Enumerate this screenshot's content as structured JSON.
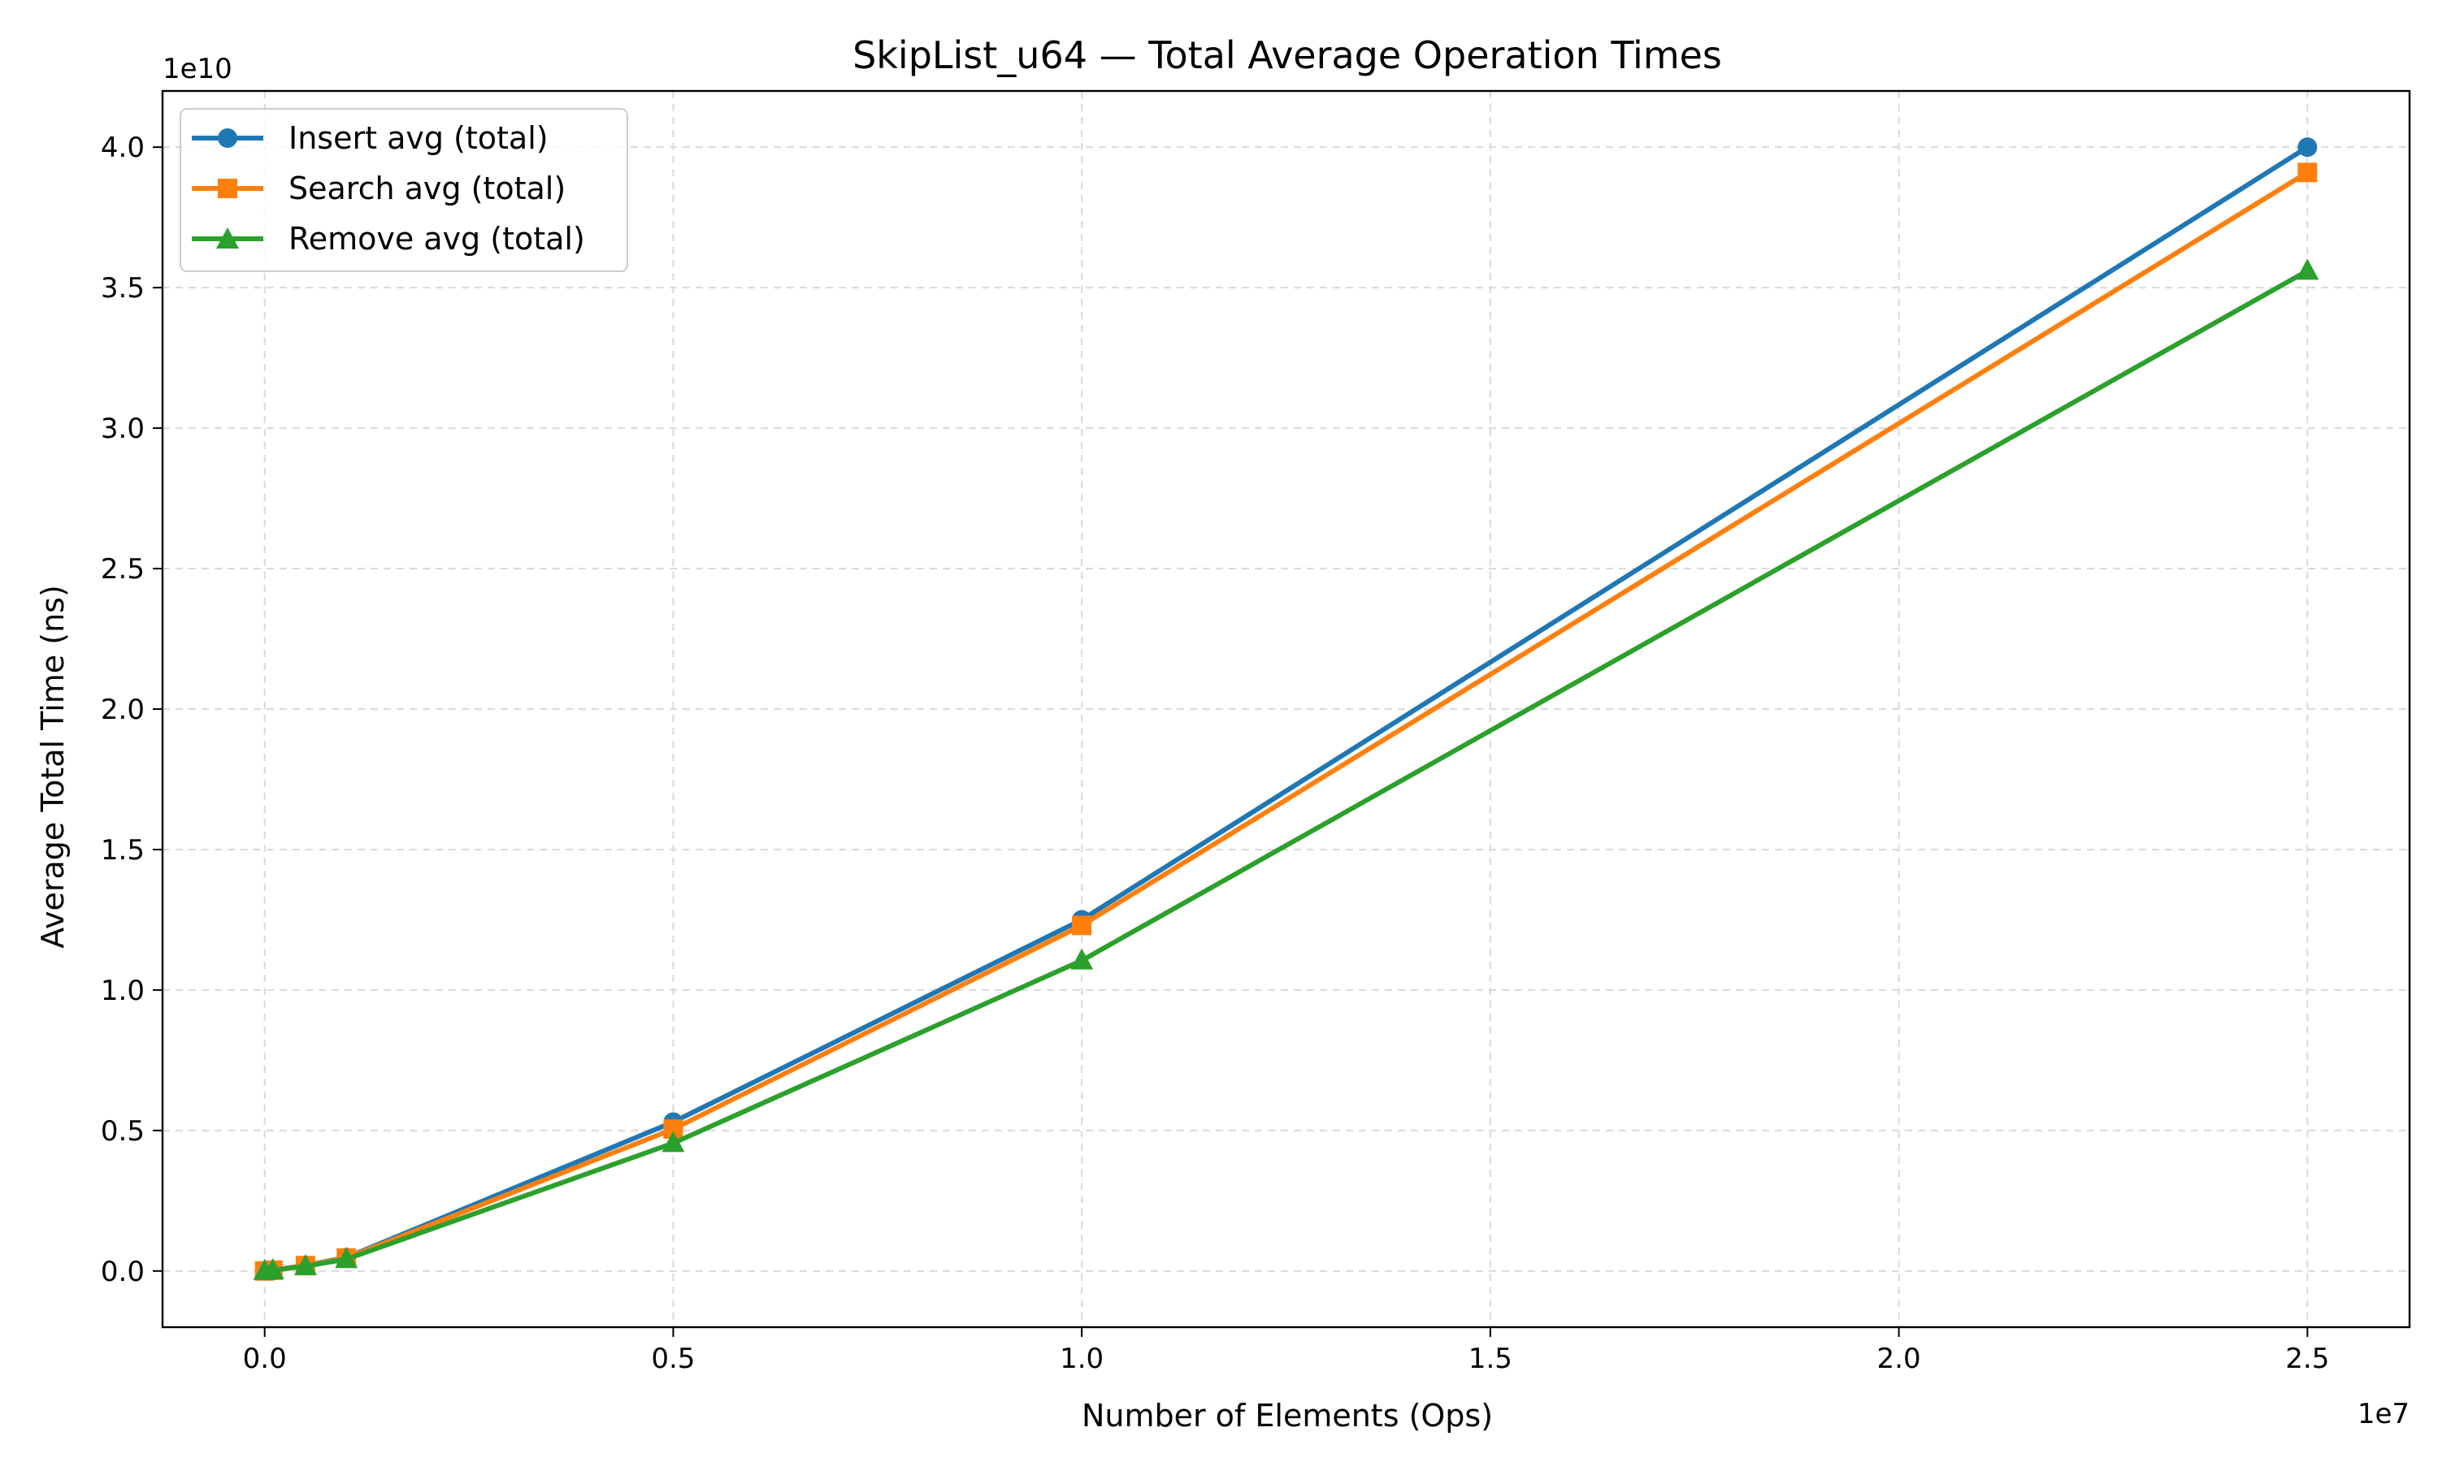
{
  "chart_data": {
    "type": "line",
    "title": "SkipList_u64 — Total Average Operation Times",
    "xlabel": "Number of Elements (Ops)",
    "ylabel": "Average Total Time (ns)",
    "x_multiplier_label": "1e7",
    "y_multiplier_label": "1e10",
    "xlim": [
      -1250000,
      26250000
    ],
    "ylim": [
      -2000000000,
      42000000000
    ],
    "x_ticks": [
      0,
      5000000,
      10000000,
      15000000,
      20000000,
      25000000
    ],
    "x_tick_labels": [
      "0.0",
      "0.5",
      "1.0",
      "1.5",
      "2.0",
      "2.5"
    ],
    "y_ticks": [
      0,
      5000000000,
      10000000000,
      15000000000,
      20000000000,
      25000000000,
      30000000000,
      35000000000,
      40000000000
    ],
    "y_tick_labels": [
      "0.0",
      "0.5",
      "1.0",
      "1.5",
      "2.0",
      "2.5",
      "3.0",
      "3.5",
      "4.0"
    ],
    "grid": true,
    "legend_position": "top-left",
    "x": [
      0,
      100000,
      500000,
      1000000,
      5000000,
      10000000,
      25000000
    ],
    "series": [
      {
        "name": "Insert avg (total)",
        "color": "#1f77b4",
        "marker": "circle",
        "values": [
          0,
          30000000,
          200000000,
          480000000,
          5300000000,
          12500000000,
          40000000000
        ]
      },
      {
        "name": "Search avg (total)",
        "color": "#ff7f0e",
        "marker": "square",
        "values": [
          0,
          28000000,
          190000000,
          460000000,
          5050000000,
          12300000000,
          39100000000
        ]
      },
      {
        "name": "Remove avg (total)",
        "color": "#2ca02c",
        "marker": "triangle",
        "values": [
          0,
          25000000,
          170000000,
          420000000,
          4550000000,
          11050000000,
          35600000000
        ]
      }
    ]
  }
}
